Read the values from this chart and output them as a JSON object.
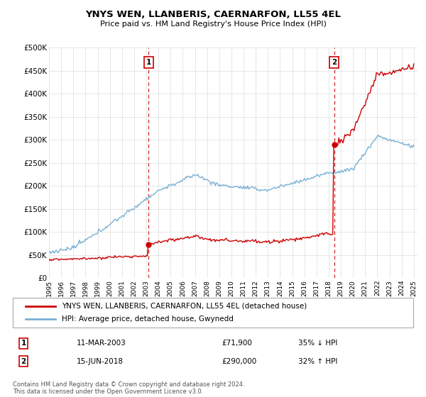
{
  "title": "YNYS WEN, LLANBERIS, CAERNARFON, LL55 4EL",
  "subtitle": "Price paid vs. HM Land Registry's House Price Index (HPI)",
  "ylim": [
    0,
    500000
  ],
  "yticks": [
    0,
    50000,
    100000,
    150000,
    200000,
    250000,
    300000,
    350000,
    400000,
    450000,
    500000
  ],
  "ytick_labels": [
    "£0",
    "£50K",
    "£100K",
    "£150K",
    "£200K",
    "£250K",
    "£300K",
    "£350K",
    "£400K",
    "£450K",
    "£500K"
  ],
  "sale1_year": 2003.19,
  "sale1_price": 71900,
  "sale2_year": 2018.45,
  "sale2_price": 290000,
  "red_color": "#cc0000",
  "blue_color": "#7ab0d4",
  "grid_color": "#dddddd",
  "background_color": "#ffffff",
  "legend_label_red": "YNYS WEN, LLANBERIS, CAERNARFON, LL55 4EL (detached house)",
  "legend_label_blue": "HPI: Average price, detached house, Gwynedd",
  "footnote": "Contains HM Land Registry data © Crown copyright and database right 2024.\nThis data is licensed under the Open Government Licence v3.0.",
  "sale1_date": "11-MAR-2003",
  "sale1_price_str": "£71,900",
  "sale1_pct": "35% ↓ HPI",
  "sale2_date": "15-JUN-2018",
  "sale2_price_str": "£290,000",
  "sale2_pct": "32% ↑ HPI"
}
